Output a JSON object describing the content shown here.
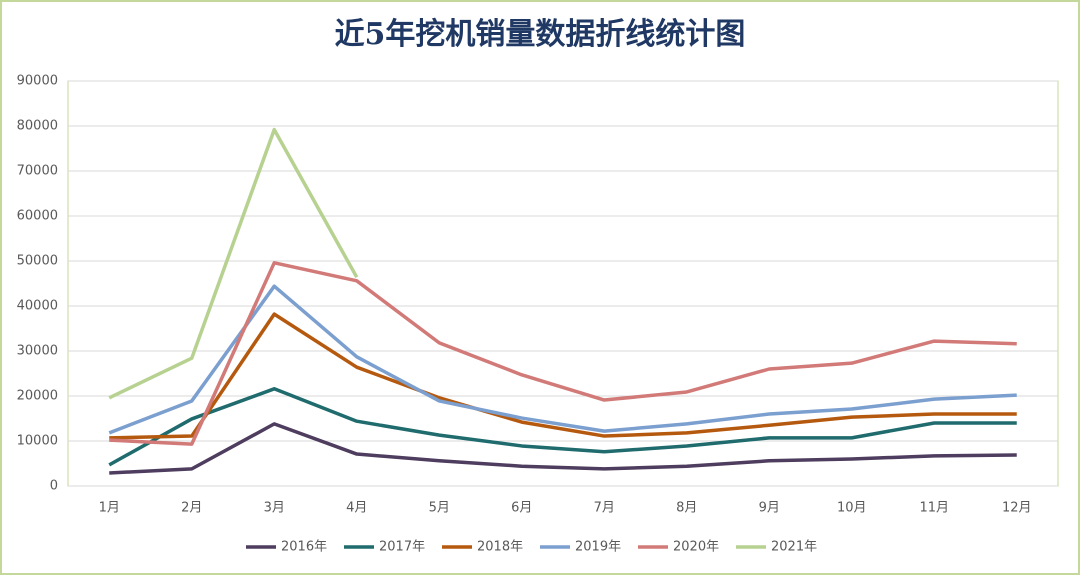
{
  "chart_data": {
    "type": "line",
    "title": "近5年挖机销量数据折线统计图",
    "categories": [
      "1月",
      "2月",
      "3月",
      "4月",
      "5月",
      "6月",
      "7月",
      "8月",
      "9月",
      "10月",
      "11月",
      "12月"
    ],
    "series": [
      {
        "name": "2016年",
        "color": "#4e3d5e",
        "values": [
          2900,
          3800,
          13800,
          7100,
          5600,
          4400,
          3800,
          4400,
          5600,
          6000,
          6700,
          6900
        ]
      },
      {
        "name": "2017年",
        "color": "#1f6b6d",
        "values": [
          4700,
          14900,
          21600,
          14400,
          11300,
          8900,
          7600,
          8900,
          10700,
          10700,
          14000,
          14000
        ]
      },
      {
        "name": "2018年",
        "color": "#b5590f",
        "values": [
          10700,
          11100,
          38200,
          26400,
          19600,
          14200,
          11100,
          11800,
          13500,
          15300,
          16000,
          16000
        ]
      },
      {
        "name": "2019年",
        "color": "#7b9fcf",
        "values": [
          11800,
          18900,
          44400,
          28700,
          18900,
          15100,
          12200,
          13800,
          16000,
          17100,
          19300,
          20200
        ]
      },
      {
        "name": "2020年",
        "color": "#d27a78",
        "values": [
          10200,
          9300,
          49600,
          45600,
          31800,
          24700,
          19100,
          20900,
          26000,
          27300,
          32200,
          31600
        ]
      },
      {
        "name": "2021年",
        "color": "#b6d190",
        "values": [
          19600,
          28400,
          79200,
          46400,
          null,
          null,
          null,
          null,
          null,
          null,
          null,
          null
        ]
      }
    ],
    "ylim": [
      0,
      90000
    ],
    "yticks": [
      0,
      10000,
      20000,
      30000,
      40000,
      50000,
      60000,
      70000,
      80000,
      90000
    ],
    "grid": true,
    "legend": "bottom"
  }
}
